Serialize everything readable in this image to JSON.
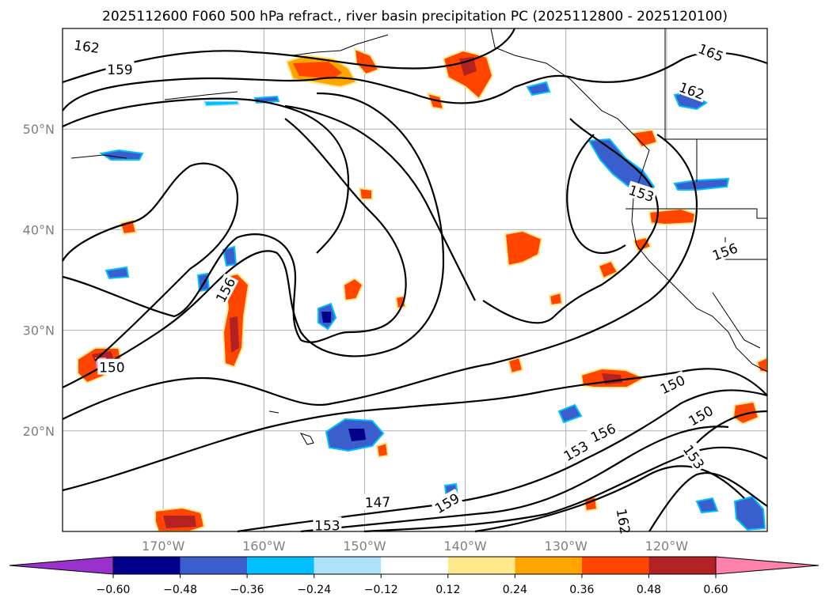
{
  "chart_data": {
    "type": "contour_map",
    "title": "2025112600 F060 500 hPa refract., river basin precipitation PC (2025112800 - 2025120100)",
    "lon_range": [
      -180,
      -110
    ],
    "lat_range": [
      10,
      60
    ],
    "lon_ticks": [
      {
        "value": -170,
        "label": "170°W"
      },
      {
        "value": -160,
        "label": "160°W"
      },
      {
        "value": -150,
        "label": "150°W"
      },
      {
        "value": -140,
        "label": "140°W"
      },
      {
        "value": -130,
        "label": "130°W"
      },
      {
        "value": -120,
        "label": "120°W"
      }
    ],
    "lat_ticks": [
      {
        "value": 50,
        "label": "50°N"
      },
      {
        "value": 40,
        "label": "40°N"
      },
      {
        "value": 30,
        "label": "30°N"
      },
      {
        "value": 20,
        "label": "20°N"
      }
    ],
    "contour_labels": [
      {
        "text": "162",
        "lon": -177.6,
        "lat": 58.2,
        "rot": 8
      },
      {
        "text": "159",
        "lon": -174.3,
        "lat": 55.9,
        "rot": 0
      },
      {
        "text": "165",
        "lon": -115.6,
        "lat": 57.6,
        "rot": 22
      },
      {
        "text": "162",
        "lon": -117.5,
        "lat": 53.8,
        "rot": 20
      },
      {
        "text": "153",
        "lon": -122.5,
        "lat": 43.6,
        "rot": 18
      },
      {
        "text": "156",
        "lon": -114.2,
        "lat": 37.8,
        "rot": -20
      },
      {
        "text": "156",
        "lon": -163.8,
        "lat": 34.0,
        "rot": -62
      },
      {
        "text": "150",
        "lon": -175.1,
        "lat": 26.3,
        "rot": 0
      },
      {
        "text": "150",
        "lon": -119.4,
        "lat": 24.6,
        "rot": -25
      },
      {
        "text": "150",
        "lon": -116.6,
        "lat": 21.5,
        "rot": -30
      },
      {
        "text": "156",
        "lon": -126.3,
        "lat": 19.8,
        "rot": -25
      },
      {
        "text": "153",
        "lon": -129.0,
        "lat": 18.0,
        "rot": -30
      },
      {
        "text": "153",
        "lon": -117.3,
        "lat": 17.4,
        "rot": 55
      },
      {
        "text": "147",
        "lon": -148.7,
        "lat": 12.9,
        "rot": -2
      },
      {
        "text": "159",
        "lon": -141.8,
        "lat": 12.8,
        "rot": -30
      },
      {
        "text": "162",
        "lon": -124.3,
        "lat": 11.0,
        "rot": 80
      },
      {
        "text": "153",
        "lon": -153.7,
        "lat": 10.6,
        "rot": 0
      }
    ],
    "colorbar": {
      "levels": [
        -0.6,
        -0.48,
        -0.36,
        -0.24,
        -0.12,
        0.12,
        0.24,
        0.36,
        0.48,
        0.6
      ],
      "tick_labels": [
        "−0.60",
        "−0.48",
        "−0.36",
        "−0.24",
        "−0.12",
        "0.12",
        "0.24",
        "0.36",
        "0.48",
        "0.60"
      ],
      "colors": [
        "#9932cc",
        "#00008b",
        "#3a5fcd",
        "#00bfff",
        "#aee2fb",
        "#ffffff",
        "#ffe88c",
        "#ffa500",
        "#ff4500",
        "#b22222",
        "#ff82ab"
      ],
      "extend": "both"
    },
    "contour_interval": 3,
    "grid": true
  }
}
